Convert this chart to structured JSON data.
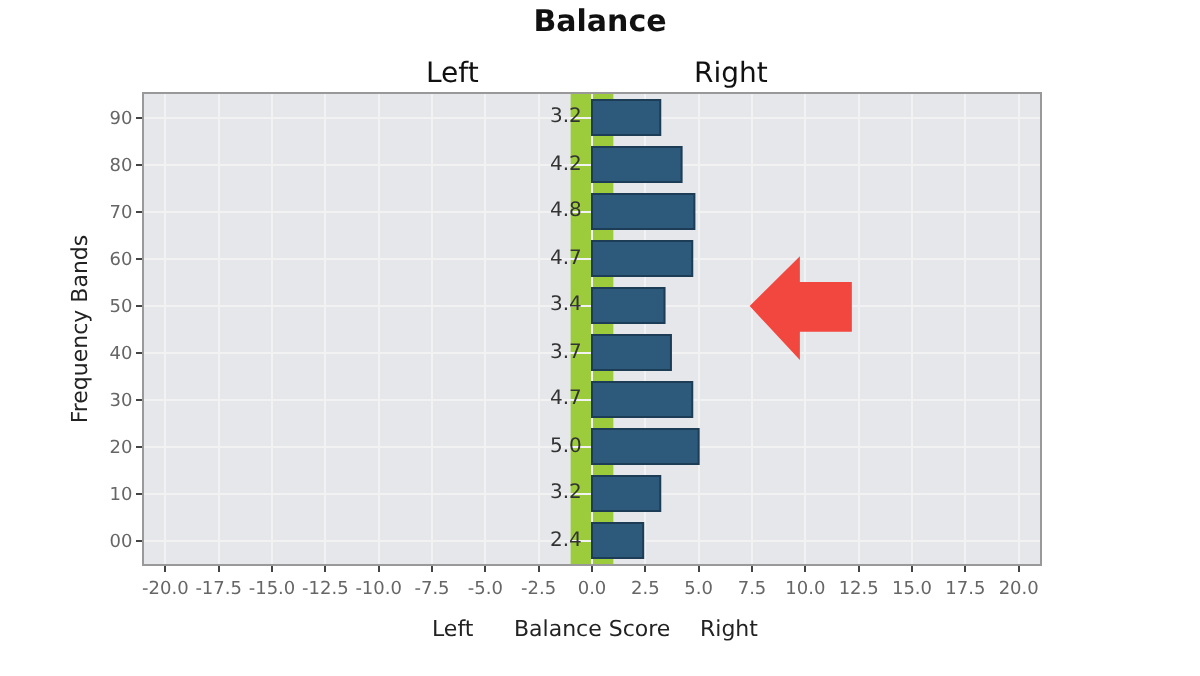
{
  "chart_data": {
    "type": "bar",
    "orientation": "horizontal",
    "title": "Balance",
    "xlabel": "Balance Score",
    "ylabel": "Frequency Bands",
    "annotations": [
      "Left",
      "Right",
      "Left",
      "Right"
    ],
    "categories": [
      "90",
      "80",
      "70",
      "60",
      "50",
      "40",
      "30",
      "20",
      "10",
      "00"
    ],
    "series": [
      {
        "color": "#2d5a7b",
        "values": [
          3.2,
          4.2,
          4.8,
          4.7,
          3.4,
          3.7,
          4.7,
          5.0,
          3.2,
          2.4
        ]
      }
    ],
    "value_labels": [
      "3.2",
      "4.2",
      "4.8",
      "4.7",
      "3.4",
      "3.7",
      "4.7",
      "5.0",
      "3.2",
      "2.4"
    ],
    "xlim": [
      -21,
      21
    ],
    "xticks": [
      {
        "value": -20,
        "label": "-20.0"
      },
      {
        "value": -17.5,
        "label": "-17.5"
      },
      {
        "value": -15,
        "label": "-15.0"
      },
      {
        "value": -12.5,
        "label": "-12.5"
      },
      {
        "value": -10,
        "label": "-10.0"
      },
      {
        "value": -7.5,
        "label": "-7.5"
      },
      {
        "value": -5,
        "label": "-5.0"
      },
      {
        "value": -2.5,
        "label": "-2.5"
      },
      {
        "value": 0,
        "label": "0.0"
      },
      {
        "value": 2.5,
        "label": "2.5"
      },
      {
        "value": 5,
        "label": "5.0"
      },
      {
        "value": 7.5,
        "label": "7.5"
      },
      {
        "value": 10,
        "label": "10.0"
      },
      {
        "value": 12.5,
        "label": "12.5"
      },
      {
        "value": 15,
        "label": "15.0"
      },
      {
        "value": 17.5,
        "label": "17.5"
      },
      {
        "value": 20,
        "label": "20.0"
      }
    ],
    "bands": [
      {
        "axis": "x",
        "from": -1,
        "to": 1,
        "color": "#9ccc3c"
      }
    ],
    "grid": true
  }
}
